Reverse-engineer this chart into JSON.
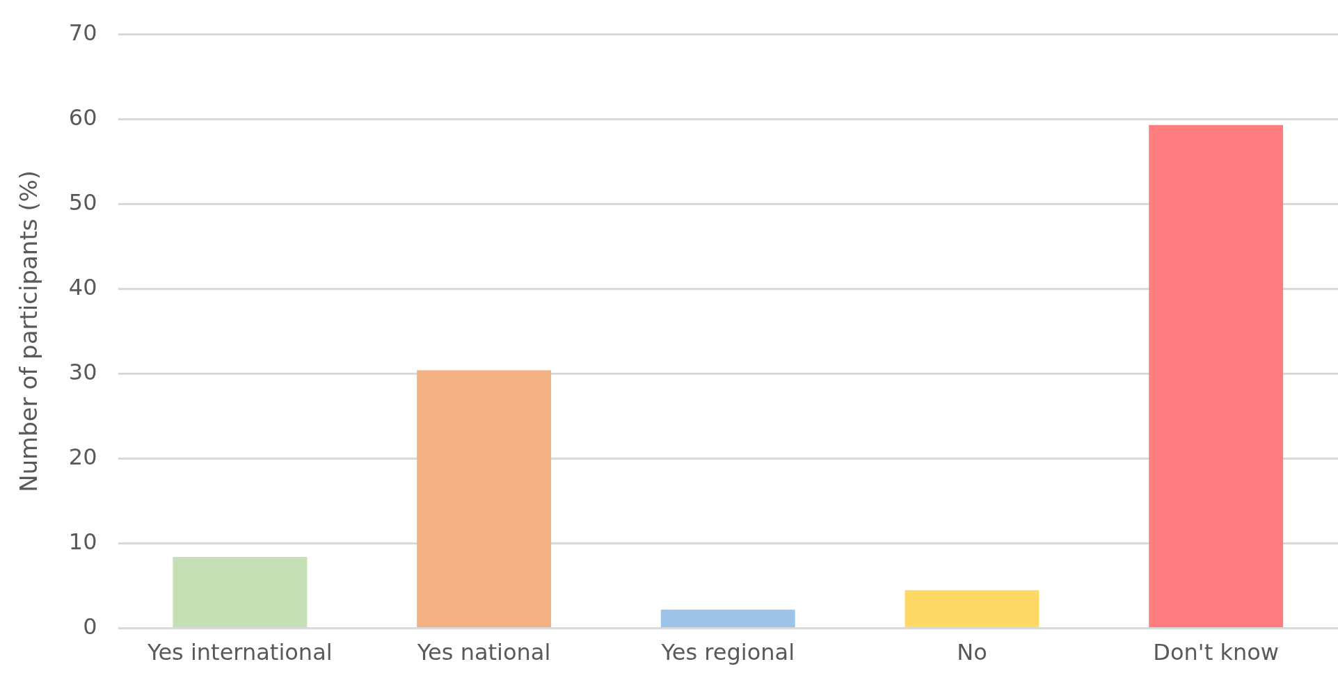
{
  "chart_data": {
    "type": "bar",
    "ylabel": "Number of participants (%)",
    "categories": [
      "Yes international",
      "Yes national",
      "Yes regional",
      "No",
      "Don't know"
    ],
    "values": [
      8.4,
      30.4,
      2.2,
      4.5,
      59.3
    ],
    "colors": [
      "#c5e0b4",
      "#f4b183",
      "#9dc3e6",
      "#ffd966",
      "#ff7c80"
    ],
    "ylim": [
      0,
      70
    ],
    "yticks": [
      0,
      10,
      20,
      30,
      40,
      50,
      60,
      70
    ],
    "grid": "y",
    "legend": false
  }
}
